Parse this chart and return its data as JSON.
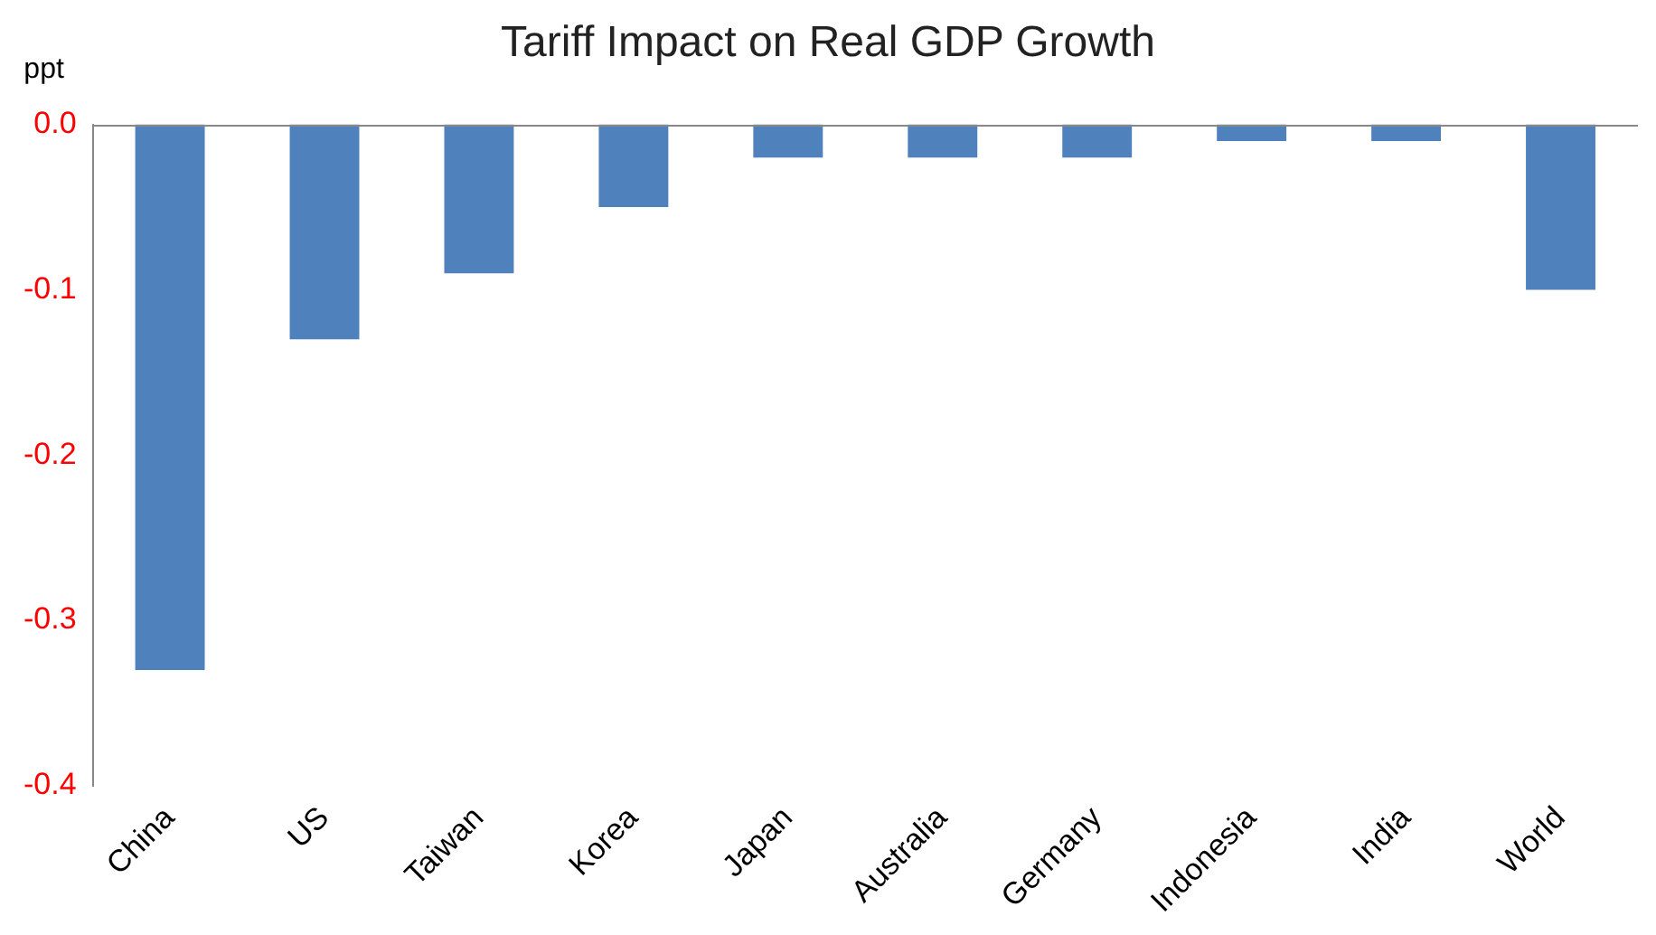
{
  "chart_data": {
    "type": "bar",
    "title": "Tariff Impact on Real GDP Growth",
    "ylabel": "ppt",
    "categories": [
      "China",
      "US",
      "Taiwan",
      "Korea",
      "Japan",
      "Australia",
      "Germany",
      "Indonesia",
      "India",
      "World"
    ],
    "values": [
      -0.33,
      -0.13,
      -0.09,
      -0.05,
      -0.02,
      -0.02,
      -0.02,
      -0.01,
      -0.01,
      -0.1
    ],
    "color": "#4f81bd",
    "ylim": [
      -0.4,
      0
    ],
    "yticks": [
      {
        "value": 0,
        "label": "0.0"
      },
      -0.1,
      -0.2,
      -0.3,
      -0.4
    ]
  }
}
